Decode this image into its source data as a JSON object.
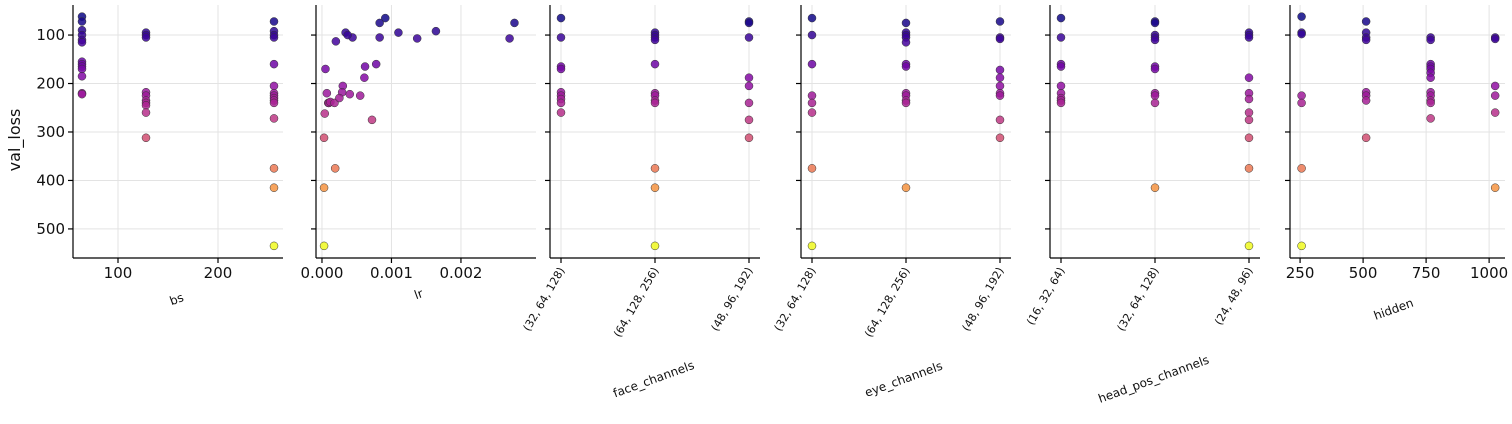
{
  "chart_data": [
    {
      "type": "scatter",
      "xlabel": "bs",
      "ylabel": "val_loss",
      "x": [
        64,
        64,
        64,
        64,
        64,
        64,
        64,
        64,
        64,
        64,
        64,
        64,
        64,
        128,
        128,
        128,
        128,
        128,
        128,
        128,
        128,
        128,
        128,
        256,
        256,
        256,
        256,
        256,
        256,
        256,
        256,
        256,
        256,
        256,
        256,
        256,
        256,
        256
      ],
      "y": [
        62,
        72,
        90,
        100,
        110,
        115,
        155,
        160,
        165,
        170,
        185,
        220,
        222,
        95,
        100,
        105,
        218,
        225,
        235,
        240,
        245,
        260,
        312,
        72,
        92,
        100,
        105,
        160,
        205,
        220,
        225,
        230,
        235,
        240,
        272,
        375,
        415,
        535
      ],
      "xlim": [
        55,
        265
      ],
      "xticks": [
        100,
        200
      ],
      "ylim": [
        560,
        38
      ],
      "yticks": [
        100,
        200,
        300,
        400,
        500
      ],
      "colormap": "plasma"
    },
    {
      "type": "scatter",
      "xlabel": "lr",
      "x": [
        0.00277,
        0.0027,
        0.00164,
        0.00137,
        0.0011,
        0.000911,
        0.00083,
        0.00083,
        0.00078,
        0.00072,
        0.00061,
        0.00062,
        0.00055,
        0.00044,
        0.0004,
        0.00034,
        0.00037,
        0.0003,
        0.00029,
        0.0002,
        0.00019,
        0.0001,
        5e-05,
        7e-05,
        9e-05,
        4e-05,
        3e-05,
        3e-05,
        3e-05,
        0.0001,
        0.00012,
        0.00018,
        0.00025
      ],
      "y": [
        75,
        107,
        92,
        107,
        95,
        65,
        75,
        105,
        160,
        275,
        188,
        165,
        225,
        105,
        222,
        95,
        100,
        205,
        218,
        113,
        375,
        240,
        170,
        220,
        240,
        262,
        312,
        415,
        535,
        240,
        238,
        240,
        230
      ],
      "xlim": [
        -8.6e-05,
        0.00308
      ],
      "xticks": [
        {
          "value": 0,
          "label": "0.000"
        },
        0.001,
        0.002
      ]
    },
    {
      "type": "scatter",
      "xlabel": "face_channels",
      "categories": [
        "(32, 64, 128)",
        "(64, 128, 256)",
        "(48, 96, 192)"
      ],
      "x": [
        "(32, 64, 128)",
        "(32, 64, 128)",
        "(32, 64, 128)",
        "(32, 64, 128)",
        "(32, 64, 128)",
        "(32, 64, 128)",
        "(32, 64, 128)",
        "(32, 64, 128)",
        "(32, 64, 128)",
        "(64, 128, 256)",
        "(64, 128, 256)",
        "(64, 128, 256)",
        "(64, 128, 256)",
        "(64, 128, 256)",
        "(64, 128, 256)",
        "(64, 128, 256)",
        "(64, 128, 256)",
        "(64, 128, 256)",
        "(64, 128, 256)",
        "(64, 128, 256)",
        "(64, 128, 256)",
        "(48, 96, 192)",
        "(48, 96, 192)",
        "(48, 96, 192)",
        "(48, 96, 192)",
        "(48, 96, 192)",
        "(48, 96, 192)",
        "(48, 96, 192)",
        "(48, 96, 192)"
      ],
      "y": [
        65,
        105,
        165,
        170,
        218,
        225,
        232,
        240,
        260,
        95,
        100,
        105,
        110,
        160,
        220,
        225,
        235,
        240,
        375,
        415,
        535,
        72,
        75,
        105,
        188,
        205,
        240,
        275,
        312
      ]
    },
    {
      "type": "scatter",
      "xlabel": "eye_channels",
      "categories": [
        "(32, 64, 128)",
        "(64, 128, 256)",
        "(48, 96, 192)"
      ],
      "x": [
        "(32, 64, 128)",
        "(32, 64, 128)",
        "(32, 64, 128)",
        "(32, 64, 128)",
        "(32, 64, 128)",
        "(32, 64, 128)",
        "(32, 64, 128)",
        "(32, 64, 128)",
        "(64, 128, 256)",
        "(64, 128, 256)",
        "(64, 128, 256)",
        "(64, 128, 256)",
        "(64, 128, 256)",
        "(64, 128, 256)",
        "(64, 128, 256)",
        "(64, 128, 256)",
        "(64, 128, 256)",
        "(64, 128, 256)",
        "(64, 128, 256)",
        "(64, 128, 256)",
        "(48, 96, 192)",
        "(48, 96, 192)",
        "(48, 96, 192)",
        "(48, 96, 192)",
        "(48, 96, 192)",
        "(48, 96, 192)",
        "(48, 96, 192)",
        "(48, 96, 192)",
        "(48, 96, 192)",
        "(48, 96, 192)"
      ],
      "y": [
        65,
        100,
        160,
        225,
        240,
        260,
        375,
        535,
        75,
        95,
        100,
        105,
        115,
        160,
        165,
        220,
        225,
        235,
        240,
        415,
        72,
        105,
        108,
        172,
        188,
        205,
        220,
        225,
        275,
        312
      ]
    },
    {
      "type": "scatter",
      "xlabel": "head_pos_channels",
      "categories": [
        "(16, 32, 64)",
        "(32, 64, 128)",
        "(24, 48, 96)"
      ],
      "x": [
        "(16, 32, 64)",
        "(16, 32, 64)",
        "(16, 32, 64)",
        "(16, 32, 64)",
        "(16, 32, 64)",
        "(16, 32, 64)",
        "(16, 32, 64)",
        "(16, 32, 64)",
        "(16, 32, 64)",
        "(32, 64, 128)",
        "(32, 64, 128)",
        "(32, 64, 128)",
        "(32, 64, 128)",
        "(32, 64, 128)",
        "(32, 64, 128)",
        "(32, 64, 128)",
        "(32, 64, 128)",
        "(32, 64, 128)",
        "(32, 64, 128)",
        "(32, 64, 128)",
        "(24, 48, 96)",
        "(24, 48, 96)",
        "(24, 48, 96)",
        "(24, 48, 96)",
        "(24, 48, 96)",
        "(24, 48, 96)",
        "(24, 48, 96)",
        "(24, 48, 96)",
        "(24, 48, 96)",
        "(24, 48, 96)",
        "(24, 48, 96)"
      ],
      "y": [
        65,
        105,
        160,
        165,
        205,
        220,
        230,
        235,
        240,
        72,
        75,
        100,
        105,
        110,
        165,
        170,
        220,
        225,
        240,
        415,
        95,
        100,
        105,
        188,
        220,
        232,
        260,
        275,
        312,
        375,
        535
      ]
    },
    {
      "type": "scatter",
      "xlabel": "hidden",
      "x": [
        256,
        256,
        256,
        256,
        256,
        256,
        256,
        512,
        512,
        512,
        512,
        512,
        512,
        512,
        512,
        768,
        768,
        768,
        768,
        768,
        768,
        768,
        768,
        768,
        768,
        768,
        768,
        1024,
        1024,
        1024,
        1024,
        1024,
        1024
      ],
      "y": [
        62,
        95,
        98,
        225,
        240,
        375,
        535,
        72,
        95,
        105,
        110,
        218,
        225,
        235,
        312,
        105,
        110,
        160,
        165,
        170,
        178,
        188,
        218,
        225,
        235,
        240,
        272,
        105,
        108,
        205,
        225,
        260,
        415
      ],
      "xlim": [
        210,
        1063
      ],
      "xticks": [
        250,
        500,
        750,
        1000
      ]
    }
  ]
}
